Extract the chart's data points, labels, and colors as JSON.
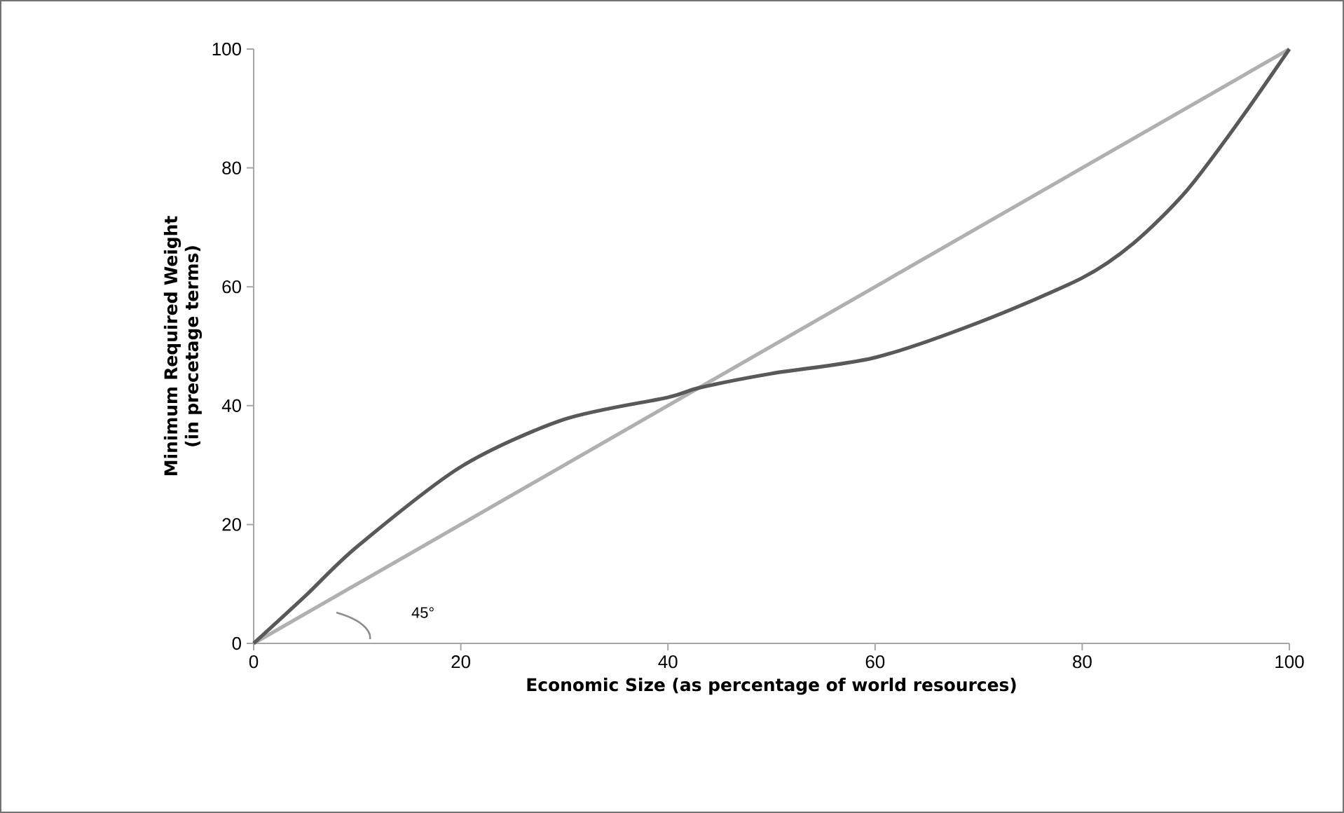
{
  "chart_data": {
    "type": "line",
    "xlabel": "Economic Size (as percentage of world resources)",
    "ylabel": "Minimum Required Weight (in precetage terms)",
    "xlim": [
      0,
      100
    ],
    "ylim": [
      0,
      100
    ],
    "xticks": [
      0,
      20,
      40,
      60,
      80,
      100
    ],
    "yticks": [
      0,
      20,
      40,
      60,
      80,
      100
    ],
    "annotations": [
      "45°"
    ],
    "series": [
      {
        "color": "#b0b0b0",
        "x": [
          0,
          100
        ],
        "values": [
          0,
          100
        ]
      },
      {
        "color": "#595959",
        "x": [
          0,
          5,
          10,
          20,
          30,
          40,
          43,
          50,
          60,
          70,
          80,
          85,
          90,
          95,
          100
        ],
        "values": [
          0,
          8,
          16.3,
          29.7,
          37.7,
          41.4,
          43,
          45.4,
          48.1,
          54,
          61.5,
          67.4,
          76,
          87.5,
          100
        ]
      }
    ]
  }
}
